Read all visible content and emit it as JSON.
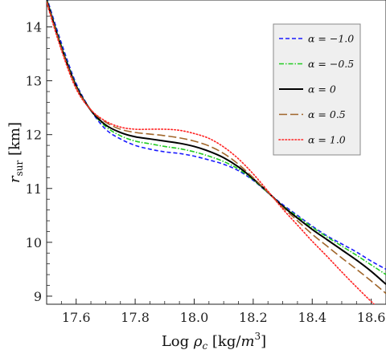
{
  "chart_data": {
    "type": "line",
    "xlabel": "Log ρ_c [kg/m^3]",
    "ylabel": "r_sur [km]",
    "xlim": [
      17.5,
      18.65
    ],
    "ylim": [
      8.85,
      14.5
    ],
    "xticks": [
      17.6,
      17.8,
      18.0,
      18.2,
      18.4,
      18.6
    ],
    "xtick_labels": [
      "17.6",
      "17.8",
      "18.0",
      "18.2",
      "18.4",
      "18.6"
    ],
    "yticks": [
      9,
      10,
      11,
      12,
      13,
      14
    ],
    "ytick_labels": [
      "9",
      "10",
      "11",
      "12",
      "13",
      "14"
    ],
    "grid": false,
    "legend_position": "top-right",
    "series": [
      {
        "name": "α = −1.0",
        "color": "#1a1aff",
        "dash": "dashed-short",
        "points": [
          [
            17.5,
            14.55
          ],
          [
            17.55,
            13.7
          ],
          [
            17.6,
            12.95
          ],
          [
            17.65,
            12.45
          ],
          [
            17.7,
            12.1
          ],
          [
            17.75,
            11.92
          ],
          [
            17.8,
            11.8
          ],
          [
            17.85,
            11.73
          ],
          [
            17.9,
            11.68
          ],
          [
            17.95,
            11.65
          ],
          [
            18.0,
            11.6
          ],
          [
            18.05,
            11.53
          ],
          [
            18.1,
            11.45
          ],
          [
            18.15,
            11.33
          ],
          [
            18.2,
            11.15
          ],
          [
            18.25,
            10.92
          ],
          [
            18.3,
            10.7
          ],
          [
            18.35,
            10.5
          ],
          [
            18.4,
            10.3
          ],
          [
            18.45,
            10.12
          ],
          [
            18.5,
            9.97
          ],
          [
            18.55,
            9.82
          ],
          [
            18.6,
            9.65
          ],
          [
            18.65,
            9.5
          ]
        ]
      },
      {
        "name": "α = −0.5",
        "color": "#22cc22",
        "dash": "dash-dot",
        "points": [
          [
            17.5,
            14.52
          ],
          [
            17.55,
            13.65
          ],
          [
            17.6,
            12.92
          ],
          [
            17.65,
            12.45
          ],
          [
            17.7,
            12.15
          ],
          [
            17.75,
            11.98
          ],
          [
            17.8,
            11.88
          ],
          [
            17.85,
            11.83
          ],
          [
            17.9,
            11.78
          ],
          [
            17.95,
            11.74
          ],
          [
            18.0,
            11.68
          ],
          [
            18.05,
            11.6
          ],
          [
            18.1,
            11.5
          ],
          [
            18.15,
            11.36
          ],
          [
            18.2,
            11.16
          ],
          [
            18.25,
            10.92
          ],
          [
            18.3,
            10.68
          ],
          [
            18.35,
            10.48
          ],
          [
            18.4,
            10.28
          ],
          [
            18.45,
            10.1
          ],
          [
            18.5,
            9.93
          ],
          [
            18.55,
            9.76
          ],
          [
            18.6,
            9.58
          ],
          [
            18.65,
            9.4
          ]
        ]
      },
      {
        "name": "α = 0",
        "color": "#000000",
        "dash": "solid",
        "points": [
          [
            17.5,
            14.5
          ],
          [
            17.55,
            13.62
          ],
          [
            17.6,
            12.9
          ],
          [
            17.65,
            12.45
          ],
          [
            17.7,
            12.18
          ],
          [
            17.75,
            12.04
          ],
          [
            17.8,
            11.96
          ],
          [
            17.85,
            11.92
          ],
          [
            17.9,
            11.88
          ],
          [
            17.95,
            11.84
          ],
          [
            18.0,
            11.78
          ],
          [
            18.05,
            11.69
          ],
          [
            18.1,
            11.57
          ],
          [
            18.15,
            11.4
          ],
          [
            18.2,
            11.18
          ],
          [
            18.25,
            10.93
          ],
          [
            18.3,
            10.67
          ],
          [
            18.35,
            10.45
          ],
          [
            18.4,
            10.24
          ],
          [
            18.45,
            10.05
          ],
          [
            18.5,
            9.86
          ],
          [
            18.55,
            9.67
          ],
          [
            18.6,
            9.46
          ],
          [
            18.65,
            9.22
          ]
        ]
      },
      {
        "name": "α = 0.5",
        "color": "#a0662a",
        "dash": "dashed-long",
        "points": [
          [
            17.5,
            14.48
          ],
          [
            17.55,
            13.6
          ],
          [
            17.6,
            12.88
          ],
          [
            17.65,
            12.46
          ],
          [
            17.7,
            12.23
          ],
          [
            17.75,
            12.1
          ],
          [
            17.8,
            12.04
          ],
          [
            17.85,
            12.01
          ],
          [
            17.9,
            11.98
          ],
          [
            17.95,
            11.94
          ],
          [
            18.0,
            11.88
          ],
          [
            18.05,
            11.79
          ],
          [
            18.1,
            11.65
          ],
          [
            18.15,
            11.45
          ],
          [
            18.2,
            11.2
          ],
          [
            18.25,
            10.93
          ],
          [
            18.3,
            10.65
          ],
          [
            18.35,
            10.4
          ],
          [
            18.4,
            10.15
          ],
          [
            18.45,
            9.93
          ],
          [
            18.5,
            9.71
          ],
          [
            18.55,
            9.5
          ],
          [
            18.6,
            9.28
          ],
          [
            18.65,
            9.05
          ]
        ]
      },
      {
        "name": "α = 1.0",
        "color": "#ff2020",
        "dash": "dotted",
        "points": [
          [
            17.5,
            14.45
          ],
          [
            17.55,
            13.57
          ],
          [
            17.6,
            12.85
          ],
          [
            17.65,
            12.46
          ],
          [
            17.7,
            12.25
          ],
          [
            17.75,
            12.14
          ],
          [
            17.8,
            12.1
          ],
          [
            17.85,
            12.1
          ],
          [
            17.9,
            12.1
          ],
          [
            17.95,
            12.08
          ],
          [
            18.0,
            12.02
          ],
          [
            18.05,
            11.93
          ],
          [
            18.1,
            11.77
          ],
          [
            18.15,
            11.55
          ],
          [
            18.2,
            11.27
          ],
          [
            18.25,
            10.95
          ],
          [
            18.3,
            10.62
          ],
          [
            18.35,
            10.32
          ],
          [
            18.4,
            10.02
          ],
          [
            18.45,
            9.74
          ],
          [
            18.5,
            9.45
          ],
          [
            18.55,
            9.17
          ],
          [
            18.6,
            8.9
          ],
          [
            18.65,
            8.65
          ]
        ]
      }
    ]
  }
}
